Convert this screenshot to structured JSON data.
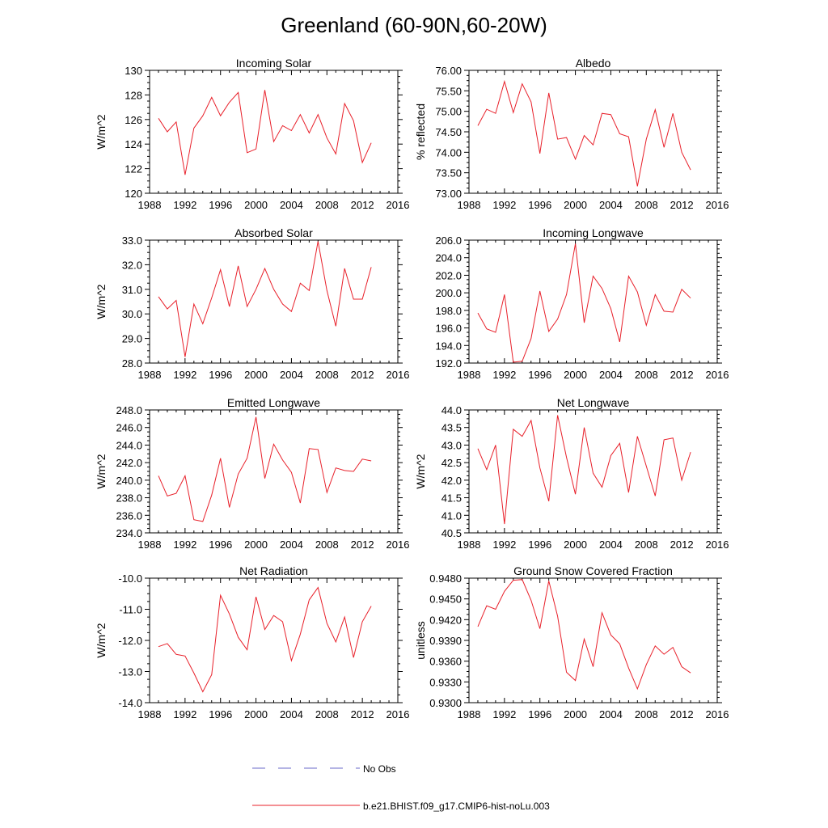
{
  "title": "Greenland (60-90N,60-20W)",
  "legend": [
    {
      "label": "No Obs",
      "color": "#6a6ac8",
      "dash": true
    },
    {
      "label": "b.e21.BHIST.f09_g17.CMIP6-hist-noLu.003",
      "color": "#e8202a",
      "dash": false
    }
  ],
  "colors": {
    "series": "#e8202a",
    "obs": "#6a6ac8"
  },
  "chart_data": [
    {
      "type": "line",
      "title": "Incoming Solar",
      "ylabel": "W/m^2",
      "xlim": [
        1988,
        2016
      ],
      "xticks": [
        1988,
        1992,
        1996,
        2000,
        2004,
        2008,
        2012,
        2016
      ],
      "ylim": [
        120,
        130
      ],
      "yticks": [
        "120",
        "122",
        "124",
        "126",
        "128",
        "130"
      ],
      "ytick_values": [
        120,
        122,
        124,
        126,
        128,
        130
      ],
      "series": [
        {
          "name": "b.e21.BHIST.f09_g17.CMIP6-hist-noLu.003",
          "x": [
            1989,
            1990,
            1991,
            1992,
            1993,
            1994,
            1995,
            1996,
            1997,
            1998,
            1999,
            2000,
            2001,
            2002,
            2003,
            2004,
            2005,
            2006,
            2007,
            2008,
            2009,
            2010,
            2011,
            2012,
            2013
          ],
          "values": [
            126.1,
            125.0,
            125.8,
            121.5,
            125.3,
            126.3,
            127.8,
            126.3,
            127.4,
            128.2,
            123.3,
            123.6,
            128.4,
            124.2,
            125.5,
            125.1,
            126.4,
            124.9,
            126.4,
            124.5,
            123.2,
            127.3,
            125.9,
            122.5,
            124.1
          ]
        }
      ]
    },
    {
      "type": "line",
      "title": "Albedo",
      "ylabel": "% reflected",
      "xlim": [
        1988,
        2016
      ],
      "xticks": [
        1988,
        1992,
        1996,
        2000,
        2004,
        2008,
        2012,
        2016
      ],
      "ylim": [
        73.0,
        76.0
      ],
      "yticks": [
        "73.00",
        "73.50",
        "74.00",
        "74.50",
        "75.00",
        "75.50",
        "76.00"
      ],
      "ytick_values": [
        73.0,
        73.5,
        74.0,
        74.5,
        75.0,
        75.5,
        76.0
      ],
      "series": [
        {
          "name": "b.e21.BHIST.f09_g17.CMIP6-hist-noLu.003",
          "x": [
            1989,
            1990,
            1991,
            1992,
            1993,
            1994,
            1995,
            1996,
            1997,
            1998,
            1999,
            2000,
            2001,
            2002,
            2003,
            2004,
            2005,
            2006,
            2007,
            2008,
            2009,
            2010,
            2011,
            2012,
            2013
          ],
          "values": [
            74.65,
            75.05,
            74.95,
            75.73,
            74.97,
            75.67,
            75.23,
            73.97,
            75.45,
            74.32,
            74.36,
            73.83,
            74.41,
            74.18,
            74.95,
            74.92,
            74.45,
            74.38,
            73.17,
            74.32,
            75.04,
            74.12,
            74.95,
            74.0,
            73.57
          ]
        }
      ]
    },
    {
      "type": "line",
      "title": "Absorbed Solar",
      "ylabel": "W/m^2",
      "xlim": [
        1988,
        2016
      ],
      "xticks": [
        1988,
        1992,
        1996,
        2000,
        2004,
        2008,
        2012,
        2016
      ],
      "ylim": [
        28.0,
        33.0
      ],
      "yticks": [
        "28.0",
        "29.0",
        "30.0",
        "31.0",
        "32.0",
        "33.0"
      ],
      "ytick_values": [
        28,
        29,
        30,
        31,
        32,
        33
      ],
      "series": [
        {
          "name": "b.e21.BHIST.f09_g17.CMIP6-hist-noLu.003",
          "x": [
            1989,
            1990,
            1991,
            1992,
            1993,
            1994,
            1995,
            1996,
            1997,
            1998,
            1999,
            2000,
            2001,
            2002,
            2003,
            2004,
            2005,
            2006,
            2007,
            2008,
            2009,
            2010,
            2011,
            2012,
            2013
          ],
          "values": [
            30.7,
            30.2,
            30.55,
            28.25,
            30.4,
            29.6,
            30.65,
            31.8,
            30.3,
            31.95,
            30.3,
            31.0,
            31.85,
            31.0,
            30.4,
            30.1,
            31.25,
            30.95,
            32.95,
            30.95,
            29.5,
            31.85,
            30.6,
            30.6,
            31.9
          ]
        }
      ]
    },
    {
      "type": "line",
      "title": "Incoming Longwave",
      "ylabel": "",
      "xlim": [
        1988,
        2016
      ],
      "xticks": [
        1988,
        1992,
        1996,
        2000,
        2004,
        2008,
        2012,
        2016
      ],
      "ylim": [
        192.0,
        206.0
      ],
      "yticks": [
        "192.0",
        "194.0",
        "196.0",
        "198.0",
        "200.0",
        "202.0",
        "204.0",
        "206.0"
      ],
      "ytick_values": [
        192,
        194,
        196,
        198,
        200,
        202,
        204,
        206
      ],
      "series": [
        {
          "name": "b.e21.BHIST.f09_g17.CMIP6-hist-noLu.003",
          "x": [
            1989,
            1990,
            1991,
            1992,
            1993,
            1994,
            1995,
            1996,
            1997,
            1998,
            1999,
            2000,
            2001,
            2002,
            2003,
            2004,
            2005,
            2006,
            2007,
            2008,
            2009,
            2010,
            2011,
            2012,
            2013
          ],
          "values": [
            197.7,
            195.9,
            195.5,
            199.8,
            192.1,
            192.2,
            194.8,
            200.2,
            195.6,
            197.0,
            199.8,
            205.6,
            196.6,
            201.9,
            200.5,
            198.2,
            194.4,
            201.9,
            200.1,
            196.3,
            199.8,
            197.9,
            197.8,
            200.4,
            199.4
          ]
        }
      ]
    },
    {
      "type": "line",
      "title": "Emitted Longwave",
      "ylabel": "W/m^2",
      "xlim": [
        1988,
        2016
      ],
      "xticks": [
        1988,
        1992,
        1996,
        2000,
        2004,
        2008,
        2012,
        2016
      ],
      "ylim": [
        234.0,
        248.0
      ],
      "yticks": [
        "234.0",
        "236.0",
        "238.0",
        "240.0",
        "242.0",
        "244.0",
        "246.0",
        "248.0"
      ],
      "ytick_values": [
        234,
        236,
        238,
        240,
        242,
        244,
        246,
        248
      ],
      "series": [
        {
          "name": "b.e21.BHIST.f09_g17.CMIP6-hist-noLu.003",
          "x": [
            1989,
            1990,
            1991,
            1992,
            1993,
            1994,
            1995,
            1996,
            1997,
            1998,
            1999,
            2000,
            2001,
            2002,
            2003,
            2004,
            2005,
            2006,
            2007,
            2008,
            2009,
            2010,
            2011,
            2012,
            2013
          ],
          "values": [
            240.5,
            238.2,
            238.5,
            240.5,
            235.5,
            235.3,
            238.3,
            242.5,
            236.9,
            240.7,
            242.5,
            247.2,
            240.2,
            244.1,
            242.3,
            240.9,
            237.4,
            243.6,
            243.5,
            238.6,
            241.4,
            241.1,
            241.0,
            242.4,
            242.2
          ]
        }
      ]
    },
    {
      "type": "line",
      "title": "Net Longwave",
      "ylabel": "W/m^2",
      "xlim": [
        1988,
        2016
      ],
      "xticks": [
        1988,
        1992,
        1996,
        2000,
        2004,
        2008,
        2012,
        2016
      ],
      "ylim": [
        40.5,
        44.0
      ],
      "yticks": [
        "40.5",
        "41.0",
        "41.5",
        "42.0",
        "42.5",
        "43.0",
        "43.5",
        "44.0"
      ],
      "ytick_values": [
        40.5,
        41.0,
        41.5,
        42.0,
        42.5,
        43.0,
        43.5,
        44.0
      ],
      "series": [
        {
          "name": "b.e21.BHIST.f09_g17.CMIP6-hist-noLu.003",
          "x": [
            1989,
            1990,
            1991,
            1992,
            1993,
            1994,
            1995,
            1996,
            1997,
            1998,
            1999,
            2000,
            2001,
            2002,
            2003,
            2004,
            2005,
            2006,
            2007,
            2008,
            2009,
            2010,
            2011,
            2012,
            2013
          ],
          "values": [
            42.9,
            42.3,
            43.0,
            40.75,
            43.45,
            43.25,
            43.7,
            42.35,
            41.4,
            43.85,
            42.65,
            41.6,
            43.5,
            42.2,
            41.8,
            42.7,
            43.05,
            41.65,
            43.25,
            42.4,
            41.55,
            43.15,
            43.2,
            42.0,
            42.8
          ]
        }
      ]
    },
    {
      "type": "line",
      "title": "Net Radiation",
      "ylabel": "W/m^2",
      "xlim": [
        1988,
        2016
      ],
      "xticks": [
        1988,
        1992,
        1996,
        2000,
        2004,
        2008,
        2012,
        2016
      ],
      "ylim": [
        -14.0,
        -10.0
      ],
      "yticks": [
        "-14.0",
        "-13.0",
        "-12.0",
        "-11.0",
        "-10.0"
      ],
      "ytick_values": [
        -14,
        -13,
        -12,
        -11,
        -10
      ],
      "series": [
        {
          "name": "b.e21.BHIST.f09_g17.CMIP6-hist-noLu.003",
          "x": [
            1989,
            1990,
            1991,
            1992,
            1993,
            1994,
            1995,
            1996,
            1997,
            1998,
            1999,
            2000,
            2001,
            2002,
            2003,
            2004,
            2005,
            2006,
            2007,
            2008,
            2009,
            2010,
            2011,
            2012,
            2013
          ],
          "values": [
            -12.2,
            -12.1,
            -12.45,
            -12.5,
            -13.05,
            -13.65,
            -13.1,
            -10.55,
            -11.15,
            -11.9,
            -12.3,
            -10.6,
            -11.65,
            -11.2,
            -11.4,
            -12.65,
            -11.8,
            -10.7,
            -10.3,
            -11.45,
            -12.05,
            -11.25,
            -12.55,
            -11.4,
            -10.9
          ]
        }
      ]
    },
    {
      "type": "line",
      "title": "Ground Snow Covered Fraction",
      "ylabel": "unitless",
      "xlim": [
        1988,
        2016
      ],
      "xticks": [
        1988,
        1992,
        1996,
        2000,
        2004,
        2008,
        2012,
        2016
      ],
      "ylim": [
        0.93,
        0.948
      ],
      "yticks": [
        "0.9300",
        "0.9330",
        "0.9360",
        "0.9390",
        "0.9420",
        "0.9450",
        "0.9480"
      ],
      "ytick_values": [
        0.93,
        0.933,
        0.936,
        0.939,
        0.942,
        0.945,
        0.948
      ],
      "series": [
        {
          "name": "b.e21.BHIST.f09_g17.CMIP6-hist-noLu.003",
          "x": [
            1989,
            1990,
            1991,
            1992,
            1993,
            1994,
            1995,
            1996,
            1997,
            1998,
            1999,
            2000,
            2001,
            2002,
            2003,
            2004,
            2005,
            2006,
            2007,
            2008,
            2009,
            2010,
            2011,
            2012,
            2013
          ],
          "values": [
            0.941,
            0.944,
            0.9435,
            0.9461,
            0.9477,
            0.9478,
            0.9448,
            0.9407,
            0.9476,
            0.9425,
            0.9344,
            0.9332,
            0.9392,
            0.9352,
            0.943,
            0.9398,
            0.9385,
            0.935,
            0.932,
            0.9355,
            0.9382,
            0.937,
            0.938,
            0.9352,
            0.9343
          ]
        }
      ]
    }
  ]
}
